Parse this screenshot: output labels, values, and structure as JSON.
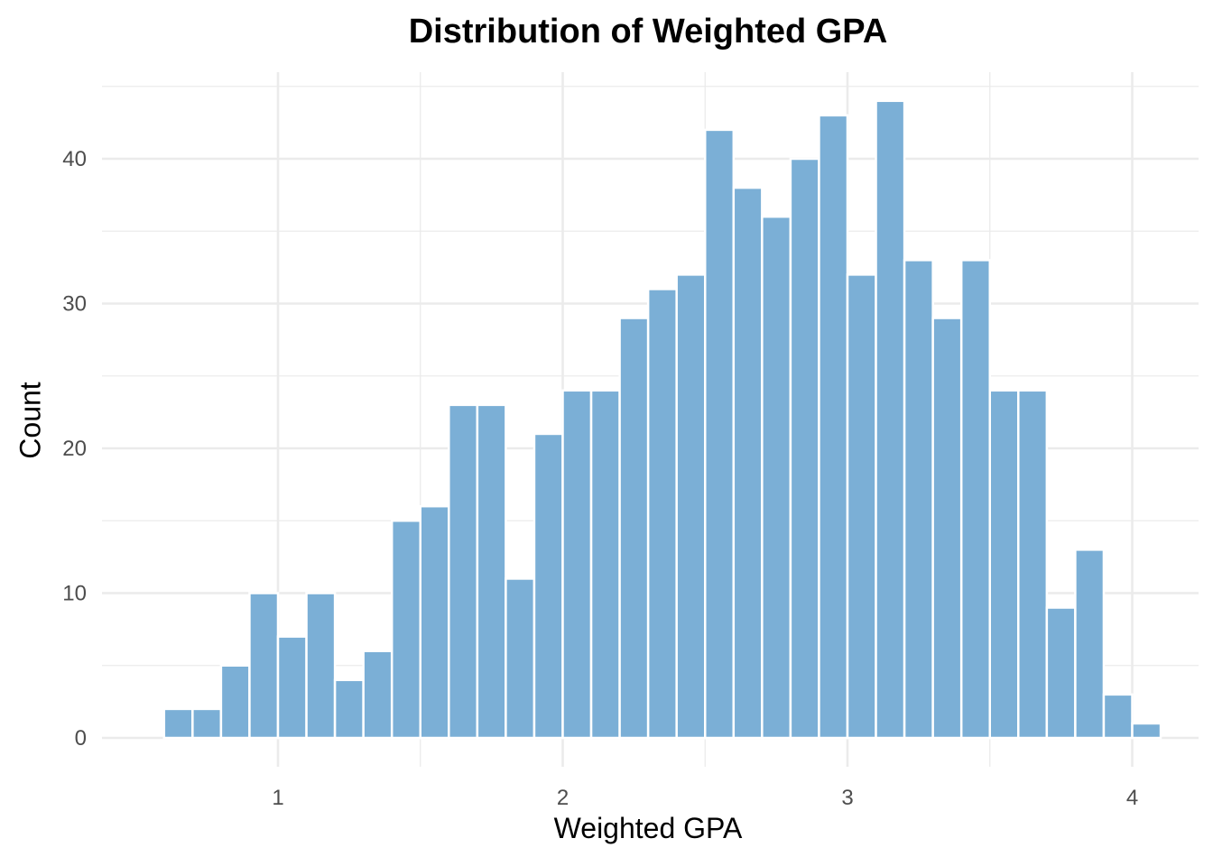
{
  "chart_data": {
    "type": "bar",
    "title": "Distribution of Weighted GPA",
    "xlabel": "Weighted GPA",
    "ylabel": "Count",
    "x_ticks": [
      1,
      2,
      3,
      4
    ],
    "y_ticks": [
      0,
      10,
      20,
      30,
      40
    ],
    "xlim": [
      0.53,
      4.11
    ],
    "ylim": [
      0,
      45.5
    ],
    "grid": true,
    "bar_color": "#7bafd6",
    "bar_outline": "#ffffff",
    "gridline_color": "#ebebeb",
    "bins": [
      {
        "x_start": 0.6,
        "x_end": 0.7,
        "count": 2
      },
      {
        "x_start": 0.7,
        "x_end": 0.8,
        "count": 2
      },
      {
        "x_start": 0.8,
        "x_end": 0.9,
        "count": 5
      },
      {
        "x_start": 0.9,
        "x_end": 1.0,
        "count": 10
      },
      {
        "x_start": 1.0,
        "x_end": 1.1,
        "count": 7
      },
      {
        "x_start": 1.1,
        "x_end": 1.2,
        "count": 10
      },
      {
        "x_start": 1.2,
        "x_end": 1.3,
        "count": 4
      },
      {
        "x_start": 1.3,
        "x_end": 1.4,
        "count": 6
      },
      {
        "x_start": 1.4,
        "x_end": 1.5,
        "count": 15
      },
      {
        "x_start": 1.5,
        "x_end": 1.6,
        "count": 16
      },
      {
        "x_start": 1.6,
        "x_end": 1.7,
        "count": 23
      },
      {
        "x_start": 1.7,
        "x_end": 1.8,
        "count": 23
      },
      {
        "x_start": 1.8,
        "x_end": 1.9,
        "count": 11
      },
      {
        "x_start": 1.9,
        "x_end": 2.0,
        "count": 21
      },
      {
        "x_start": 2.0,
        "x_end": 2.1,
        "count": 24
      },
      {
        "x_start": 2.1,
        "x_end": 2.2,
        "count": 24
      },
      {
        "x_start": 2.2,
        "x_end": 2.3,
        "count": 29
      },
      {
        "x_start": 2.3,
        "x_end": 2.4,
        "count": 31
      },
      {
        "x_start": 2.4,
        "x_end": 2.5,
        "count": 32
      },
      {
        "x_start": 2.5,
        "x_end": 2.6,
        "count": 42
      },
      {
        "x_start": 2.6,
        "x_end": 2.7,
        "count": 38
      },
      {
        "x_start": 2.7,
        "x_end": 2.8,
        "count": 36
      },
      {
        "x_start": 2.8,
        "x_end": 2.9,
        "count": 40
      },
      {
        "x_start": 2.9,
        "x_end": 3.0,
        "count": 43
      },
      {
        "x_start": 3.0,
        "x_end": 3.1,
        "count": 32
      },
      {
        "x_start": 3.1,
        "x_end": 3.2,
        "count": 44
      },
      {
        "x_start": 3.2,
        "x_end": 3.3,
        "count": 33
      },
      {
        "x_start": 3.3,
        "x_end": 3.4,
        "count": 29
      },
      {
        "x_start": 3.4,
        "x_end": 3.5,
        "count": 33
      },
      {
        "x_start": 3.5,
        "x_end": 3.6,
        "count": 24
      },
      {
        "x_start": 3.6,
        "x_end": 3.7,
        "count": 24
      },
      {
        "x_start": 3.7,
        "x_end": 3.8,
        "count": 9
      },
      {
        "x_start": 3.8,
        "x_end": 3.9,
        "count": 13
      },
      {
        "x_start": 3.9,
        "x_end": 4.0,
        "count": 3
      },
      {
        "x_start": 4.0,
        "x_end": 4.1,
        "count": 1
      }
    ]
  }
}
